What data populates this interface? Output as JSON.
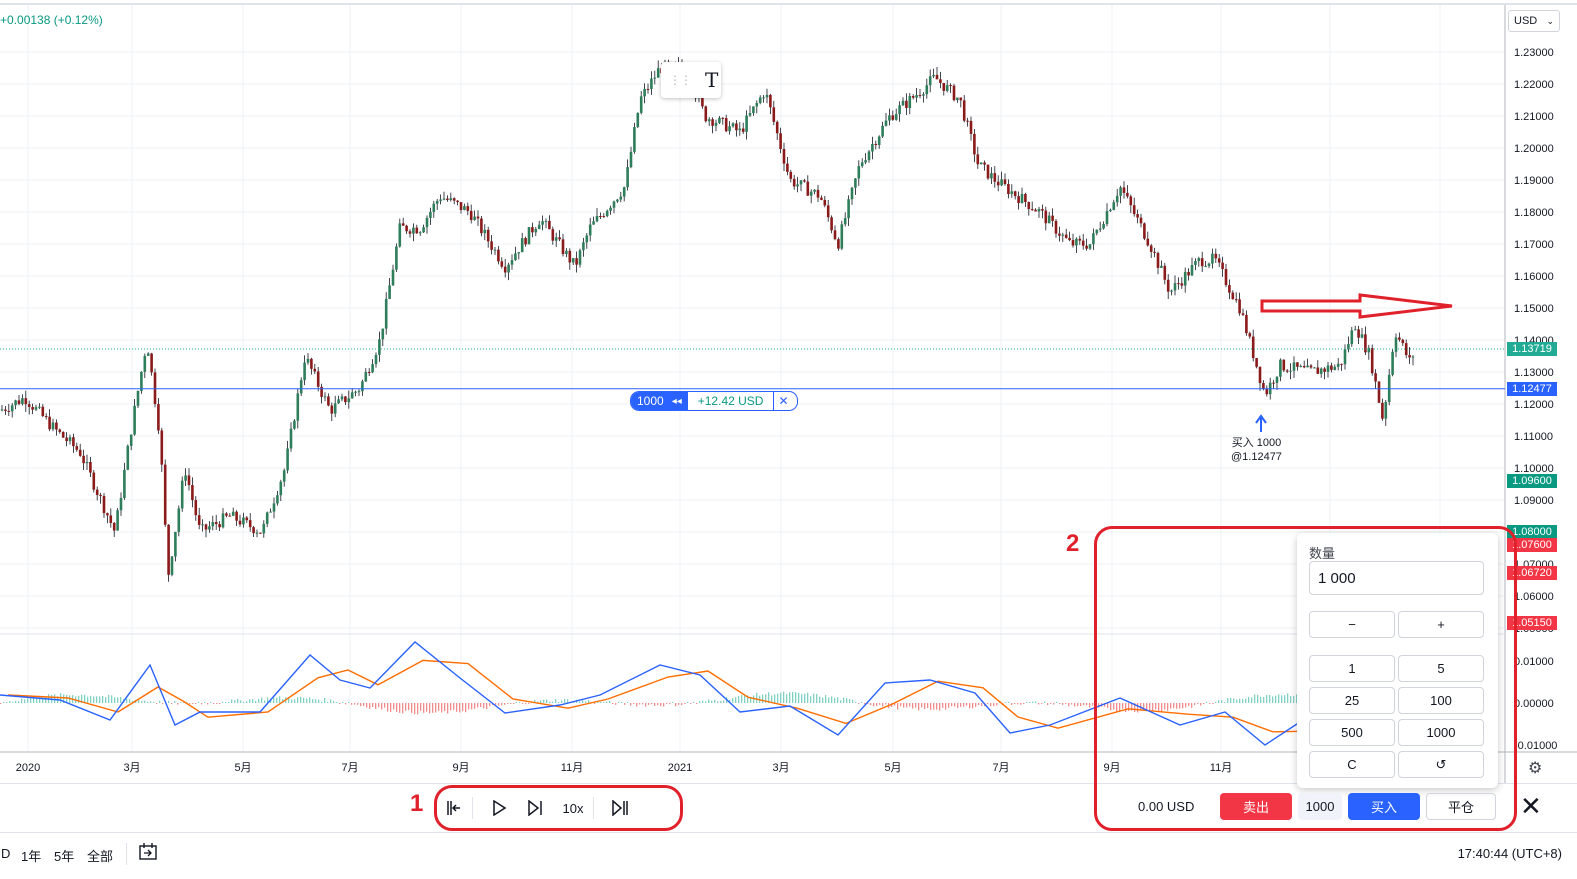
{
  "header": {
    "change_text": "+0.00138 (+0.12%)",
    "currency": "USD"
  },
  "price_axis": {
    "ticks": [
      "1.23000",
      "1.22000",
      "1.21000",
      "1.20000",
      "1.19000",
      "1.18000",
      "1.17000",
      "1.16000",
      "1.15000",
      "1.14000",
      "1.13000",
      "1.12000",
      "1.11000",
      "1.10000",
      "1.09000",
      "1.08000",
      "1.07000",
      "1.06000",
      "1.05000"
    ],
    "tags": [
      {
        "text": "1.13719",
        "color": "#22ab94"
      },
      {
        "text": "1.12477",
        "color": "#2962ff"
      },
      {
        "text": "1.09600",
        "color": "#089981"
      },
      {
        "text": "1.08000",
        "color": "#089981"
      },
      {
        "text": "1.07600",
        "color": "#f23645"
      },
      {
        "text": "1.06720",
        "color": "#f23645"
      },
      {
        "text": "1.05150",
        "color": "#f23645"
      }
    ]
  },
  "macd_axis": {
    "ticks": [
      "0.01000",
      "0.00000",
      "-0.01000"
    ]
  },
  "time_axis": {
    "labels": [
      "2020",
      "3月",
      "5月",
      "7月",
      "9月",
      "11月",
      "2021",
      "3月",
      "5月",
      "7月",
      "9月",
      "11月"
    ]
  },
  "position": {
    "qty": "1000",
    "reverse_icon": "reverse-icon",
    "pnl": "+12.42 USD",
    "close": "✕"
  },
  "buy_marker": {
    "line1": "买入 1000",
    "line2": "@1.12477"
  },
  "replay": {
    "speed": "10x"
  },
  "annotations": {
    "one": "1",
    "two": "2"
  },
  "trade_panel": {
    "quantity_label": "数量",
    "quantity_value": "1 000",
    "minus": "−",
    "plus": "+",
    "presets": [
      "1",
      "5",
      "25",
      "100",
      "500",
      "1000"
    ],
    "clear": "C",
    "reset": "↺"
  },
  "order_bar": {
    "balance": "0.00 USD",
    "sell": "卖出",
    "qty": "1000",
    "buy": "买入",
    "close_position": "平仓"
  },
  "footer": {
    "ranges": [
      "D",
      "1年",
      "5年",
      "全部"
    ],
    "clock": "17:40:44 (UTC+8)"
  },
  "chart_data": {
    "type": "candlestick",
    "symbol_quote": "USD",
    "ylim": [
      1.045,
      1.235
    ],
    "series": [
      {
        "name": "price",
        "x": [
          "2020-01",
          "2020-02",
          "2020-03",
          "2020-04",
          "2020-05",
          "2020-06",
          "2020-07",
          "2020-08",
          "2020-09",
          "2020-10",
          "2020-11",
          "2020-12",
          "2021-01",
          "2021-02",
          "2021-03",
          "2021-04",
          "2021-05",
          "2021-06",
          "2021-07",
          "2021-08",
          "2021-09",
          "2021-10",
          "2021-11",
          "2021-12"
        ],
        "close": [
          1.115,
          1.095,
          1.103,
          1.087,
          1.11,
          1.125,
          1.175,
          1.185,
          1.168,
          1.168,
          1.195,
          1.222,
          1.215,
          1.205,
          1.178,
          1.198,
          1.22,
          1.19,
          1.185,
          1.175,
          1.16,
          1.158,
          1.13,
          1.137
        ]
      }
    ],
    "position_price": 1.12477,
    "last_price": 1.13719
  }
}
